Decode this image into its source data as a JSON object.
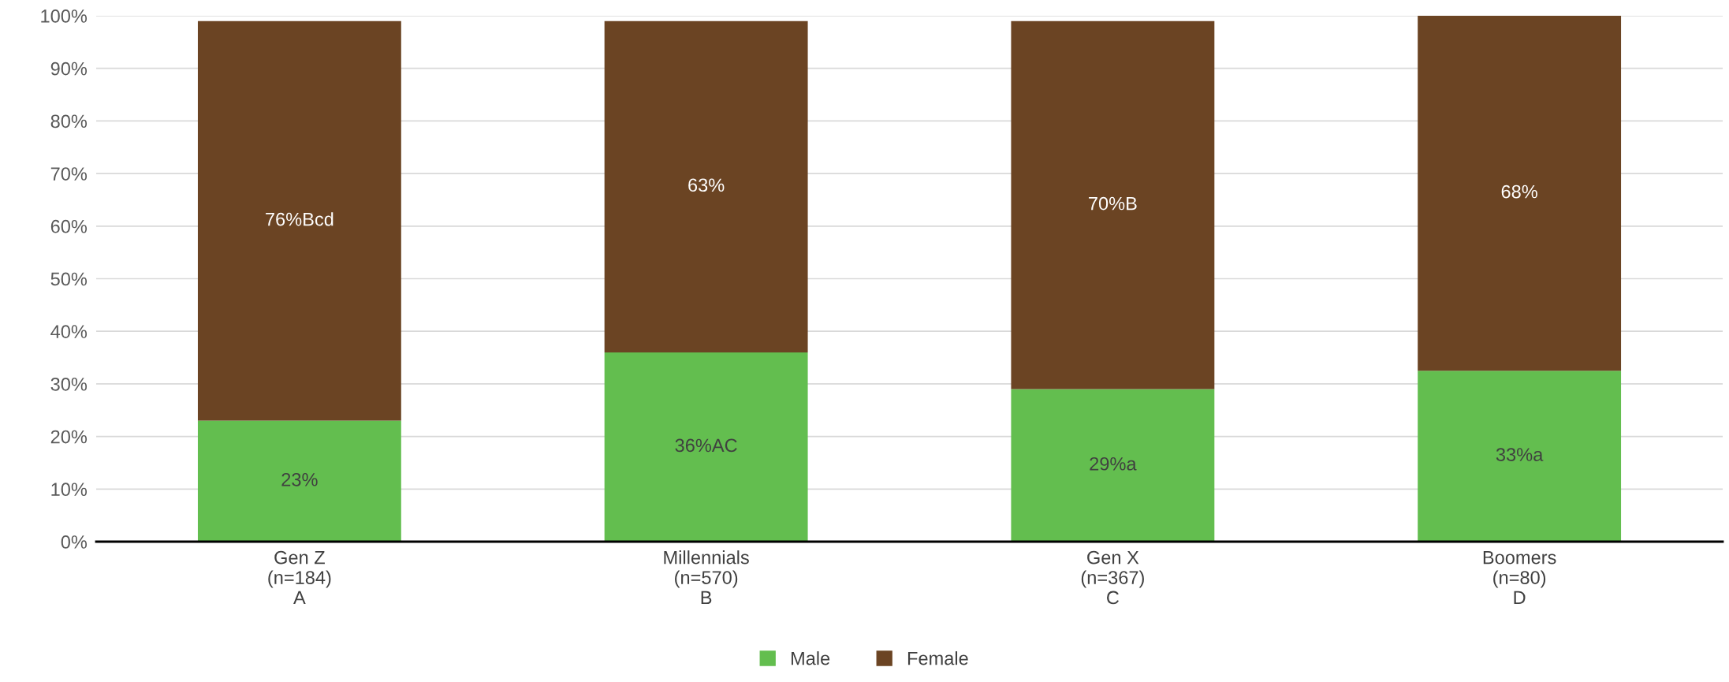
{
  "chart_data": {
    "type": "bar",
    "stacked": true,
    "categories": [
      "Gen Z\n(n=184)\nA",
      "Millennials\n(n=570)\nB",
      "Gen X\n(n=367)\nC",
      "Boomers\n(n=80)\nD"
    ],
    "series": [
      {
        "name": "Male",
        "color": "#63be4f",
        "values": [
          23,
          36,
          29,
          32.5
        ],
        "value_labels": [
          "23%",
          "36%AC",
          "29%a",
          "33%a"
        ]
      },
      {
        "name": "Female",
        "color": "#6b4423",
        "values": [
          76,
          63,
          70,
          67.5
        ],
        "value_labels": [
          "76%Bcd",
          "63%",
          "70%B",
          "68%"
        ]
      }
    ],
    "ylim": [
      0,
      100
    ],
    "yticks": [
      {
        "value": 0,
        "label": "0%"
      },
      {
        "value": 10,
        "label": "10%"
      },
      {
        "value": 20,
        "label": "20%"
      },
      {
        "value": 30,
        "label": "30%"
      },
      {
        "value": 40,
        "label": "40%"
      },
      {
        "value": 50,
        "label": "50%"
      },
      {
        "value": 60,
        "label": "60%"
      },
      {
        "value": 70,
        "label": "70%"
      },
      {
        "value": 80,
        "label": "80%"
      },
      {
        "value": 90,
        "label": "90%"
      },
      {
        "value": 100,
        "label": "100%"
      }
    ],
    "grid": "y",
    "legend": "bottom"
  }
}
